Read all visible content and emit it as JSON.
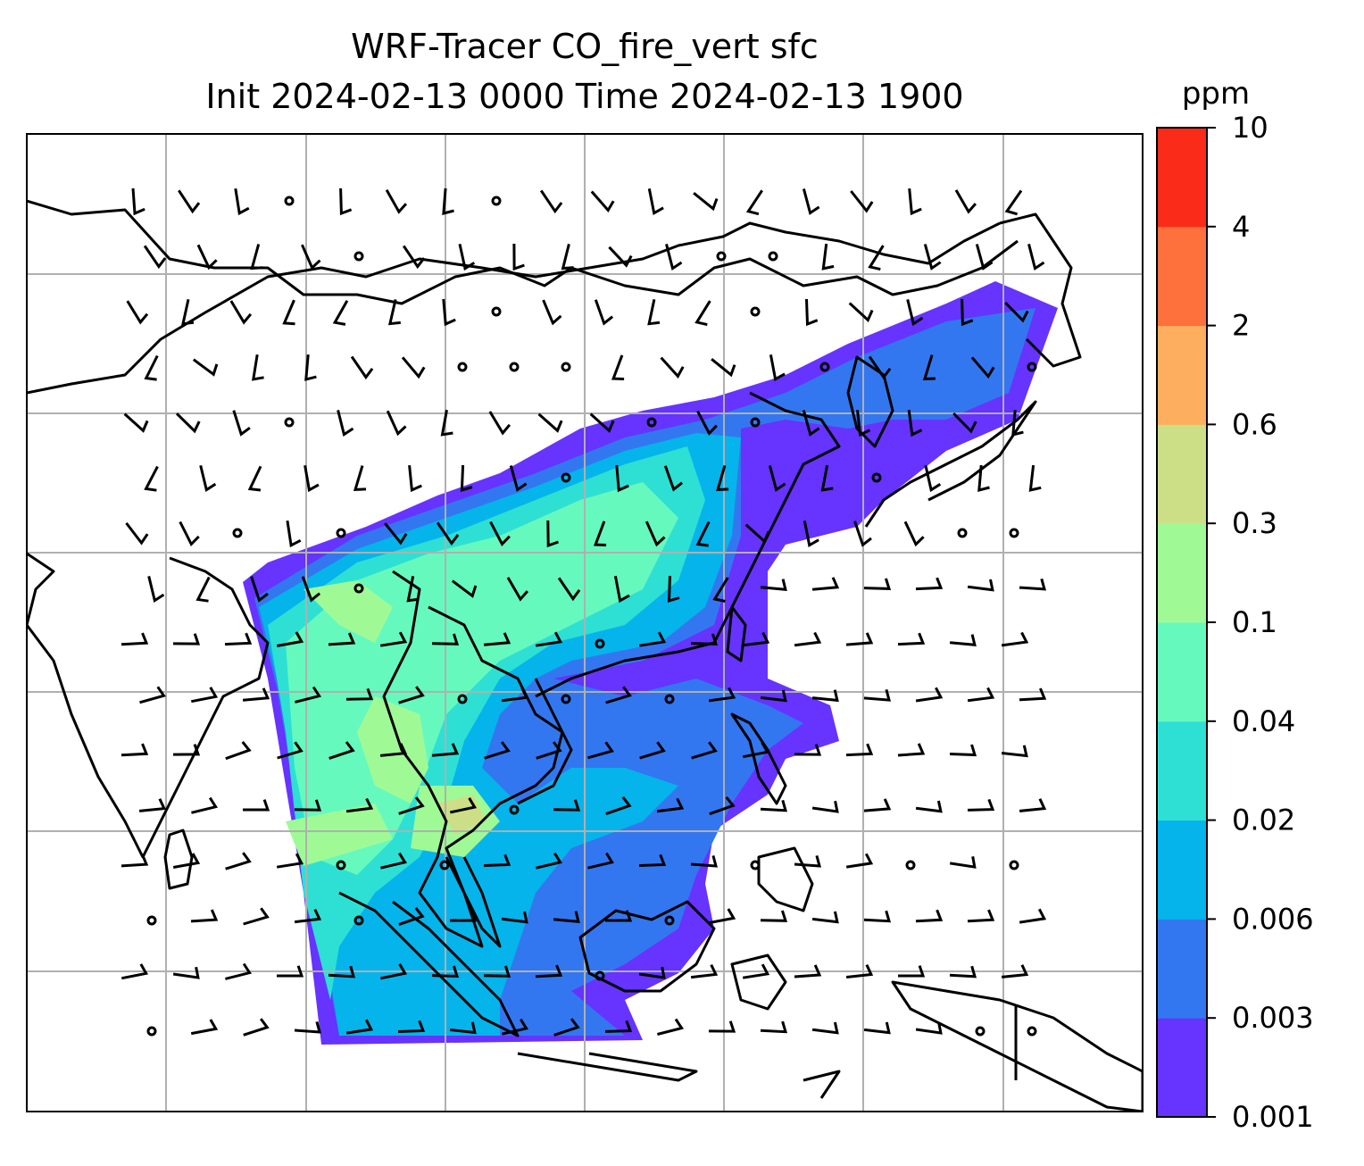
{
  "title": {
    "line1": "WRF-Tracer CO_fire_vert sfc",
    "line2": "Init 2024-02-13 0000 Time 2024-02-13 1900"
  },
  "colorbar": {
    "unit": "ppm",
    "levels": [
      "0.001",
      "0.003",
      "0.006",
      "0.02",
      "0.04",
      "0.1",
      "0.3",
      "0.6",
      "2",
      "4",
      "10"
    ],
    "colors": [
      "#6633ff",
      "#3377f0",
      "#05b4ea",
      "#2ee0d4",
      "#66f9be",
      "#9ffa96",
      "#cddf86",
      "#fdae5e",
      "#fe703c",
      "#fa2b18"
    ]
  },
  "map": {
    "gridlines": true,
    "coastline_color": "#000000",
    "gridline_color": "#b0b0b0",
    "overlay": "wind barbs and calm-wind circles"
  }
}
